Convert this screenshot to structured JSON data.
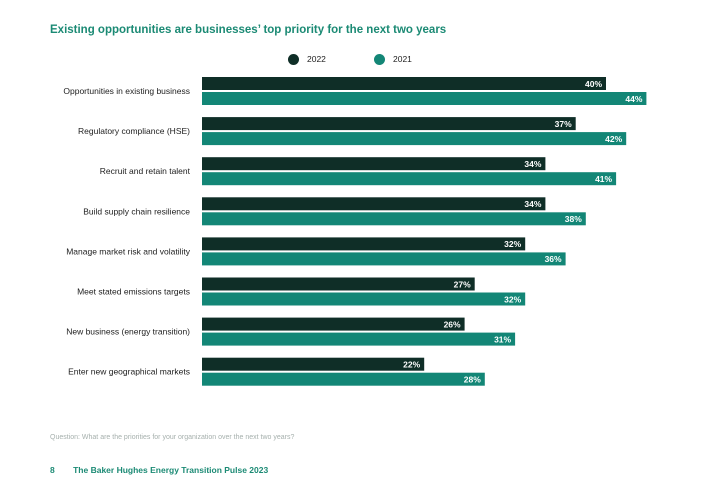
{
  "chart_data": {
    "type": "bar",
    "orientation": "horizontal",
    "title": "Existing opportunities are businesses’ top priority for the next two years",
    "categories": [
      "Opportunities in existing business",
      "Regulatory compliance (HSE)",
      "Recruit and retain talent",
      "Build supply chain resilience",
      "Manage market risk and volatility",
      "Meet stated emissions targets",
      "New business (energy transition)",
      "Enter new geographical markets"
    ],
    "series": [
      {
        "name": "2022",
        "color": "#0f2e27",
        "values": [
          40,
          37,
          34,
          34,
          32,
          27,
          26,
          22
        ]
      },
      {
        "name": "2021",
        "color": "#138676",
        "values": [
          44,
          42,
          41,
          38,
          36,
          32,
          31,
          28
        ]
      }
    ],
    "value_suffix": "%",
    "legend_position": "top-center",
    "grid": false
  },
  "question": "Question: What are the priorities for your organization over the next two years?",
  "footer": {
    "page_number": "8",
    "publication": "The Baker Hughes Energy Transition Pulse 2023"
  }
}
